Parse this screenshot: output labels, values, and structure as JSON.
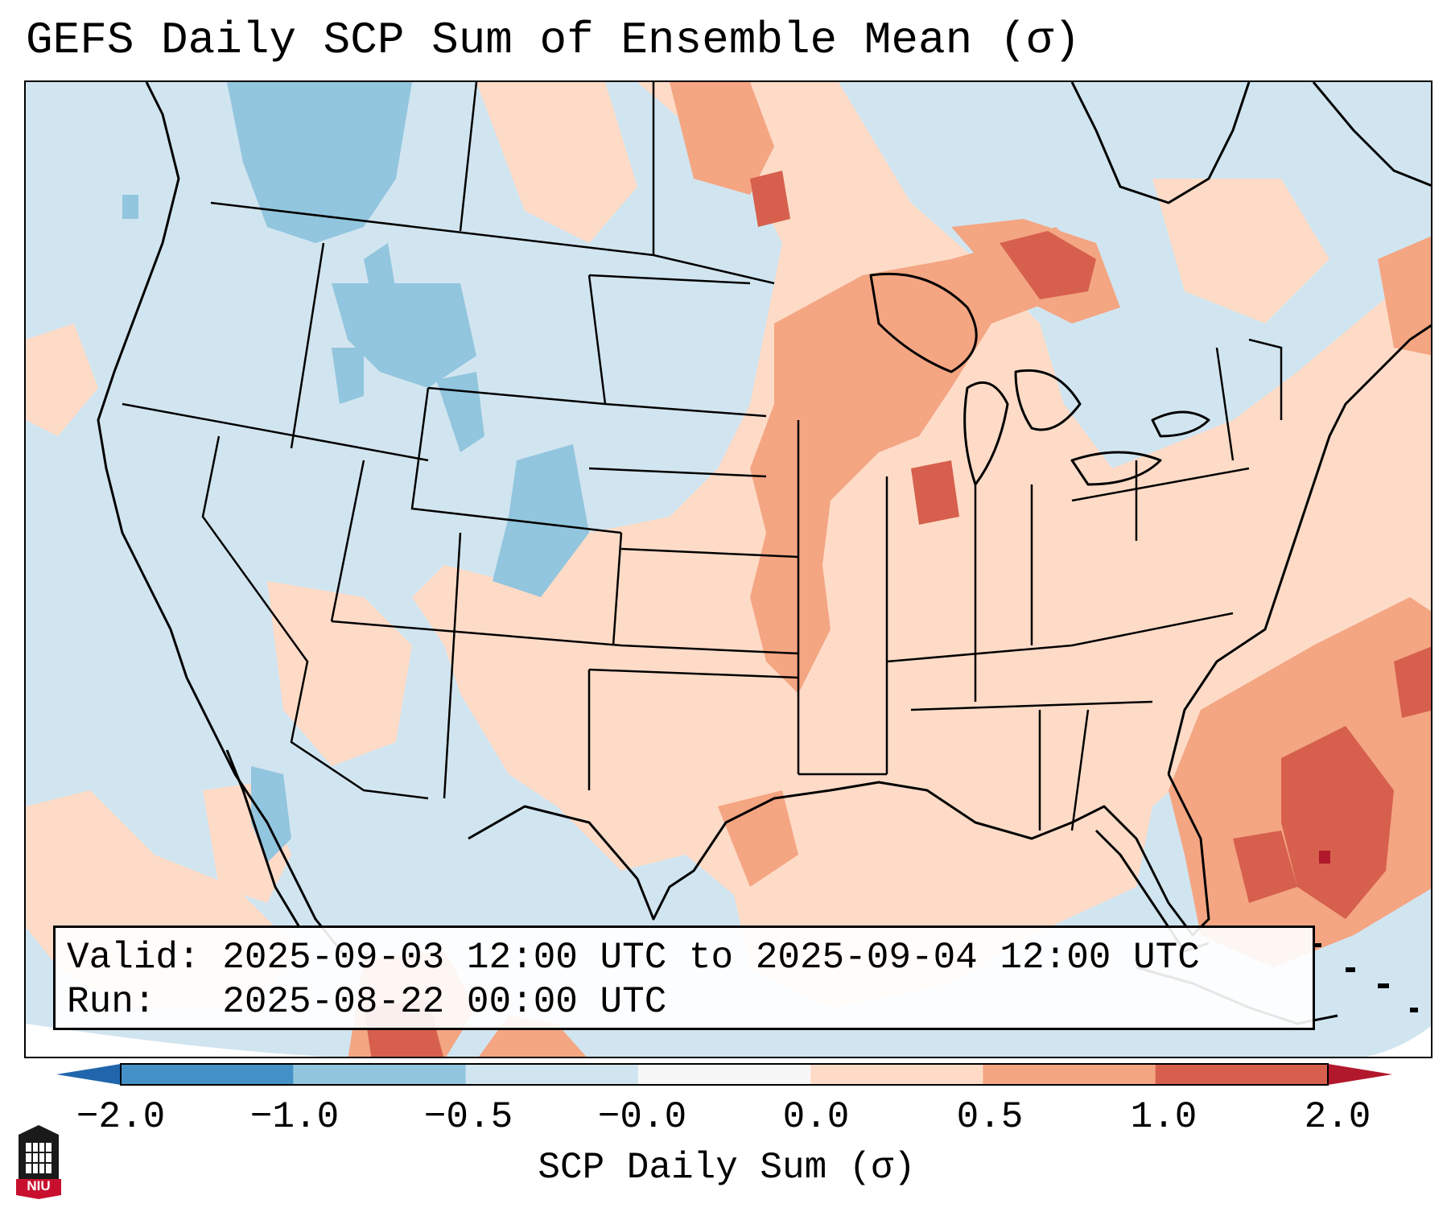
{
  "title": "GEFS Daily SCP Sum of Ensemble Mean (σ)",
  "info": {
    "valid_line": "Valid: 2025-09-03 12:00 UTC to 2025-09-04 12:00 UTC",
    "run_line": "Run:   2025-08-22 00:00 UTC"
  },
  "colorbar": {
    "label": "SCP Daily Sum (σ)",
    "ticks": [
      "−2.0",
      "−1.0",
      "−0.5",
      "−0.0",
      "0.0",
      "0.5",
      "1.0",
      "2.0"
    ],
    "colors": [
      "#4391c6",
      "#92c5de",
      "#d1e5f0",
      "#f7f7f7",
      "#fddbc7",
      "#f4a582",
      "#d6604d"
    ],
    "under_color": "#2166ac",
    "over_color": "#b2182b"
  },
  "map": {
    "background_color": "#d1e5f0",
    "land_outline_color": "#000000",
    "anomaly_regions": [
      {
        "name": "southern-plains-texas",
        "level": "0.0-0.5"
      },
      {
        "name": "mississippi-valley",
        "level": "0.5-1.0"
      },
      {
        "name": "upper-midwest-great-lakes",
        "level": "0.5-1.0"
      },
      {
        "name": "ontario-quebec",
        "level": "1.0-2.0"
      },
      {
        "name": "western-atlantic",
        "level": "1.0-2.0"
      },
      {
        "name": "northern-rockies",
        "level": "-1.0--0.5"
      },
      {
        "name": "colorado-rockies",
        "level": "-1.0--0.5"
      },
      {
        "name": "baja-gulf-of-california",
        "level": "-1.0--0.5"
      }
    ]
  },
  "logo": {
    "text": "NIU"
  }
}
